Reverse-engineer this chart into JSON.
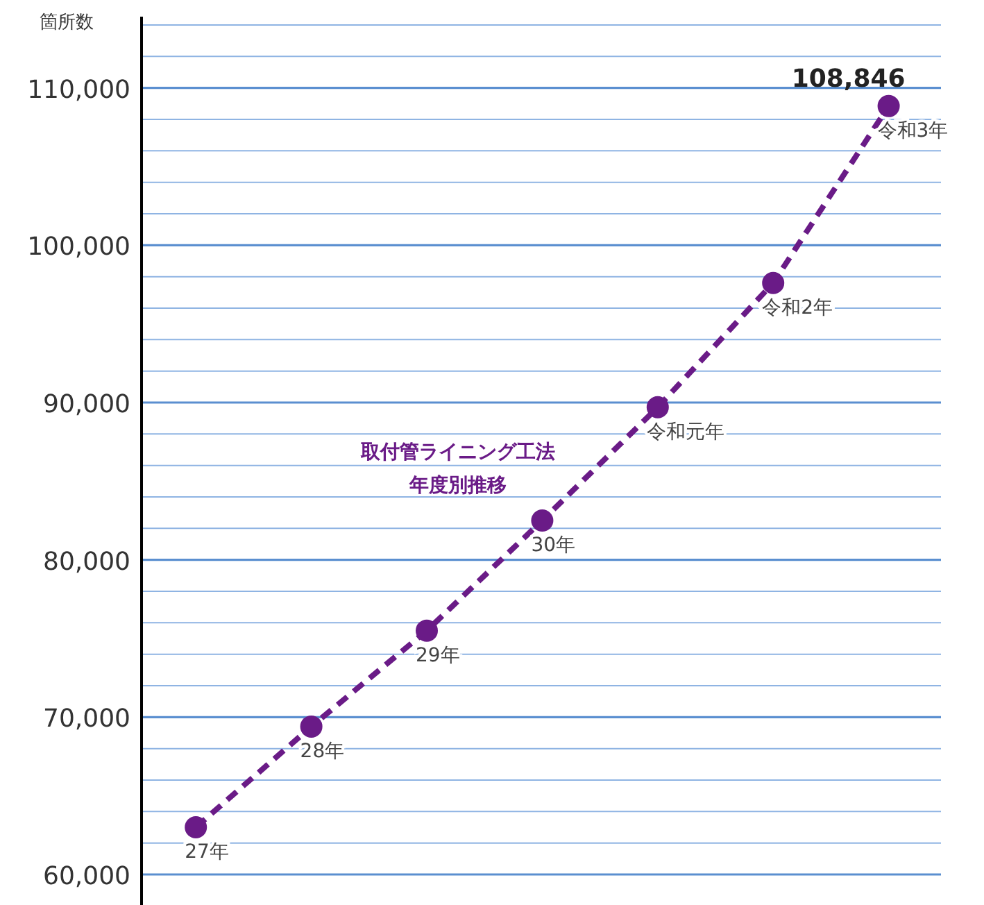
{
  "chart_data": {
    "type": "line",
    "title": "取付管ライニング工法",
    "subtitle": "年度別推移",
    "ylabel": "箇所数",
    "categories": [
      "27年",
      "28年",
      "29年",
      "30年",
      "令和元年",
      "令和2年",
      "令和3年"
    ],
    "series": [
      {
        "color": "#6a1b87",
        "values": [
          63000,
          69400,
          75500,
          82500,
          89700,
          97600,
          108846
        ],
        "value_labels": [
          null,
          null,
          null,
          null,
          null,
          null,
          "108,846"
        ]
      }
    ],
    "ylim": [
      60000,
      114000
    ],
    "yticks": [
      {
        "value": 60000,
        "label": "60,000"
      },
      {
        "value": 62000,
        "label": null
      },
      {
        "value": 64000,
        "label": null
      },
      {
        "value": 66000,
        "label": null
      },
      {
        "value": 68000,
        "label": null
      },
      {
        "value": 70000,
        "label": "70,000"
      },
      {
        "value": 72000,
        "label": null
      },
      {
        "value": 74000,
        "label": null
      },
      {
        "value": 76000,
        "label": null
      },
      {
        "value": 78000,
        "label": null
      },
      {
        "value": 80000,
        "label": "80,000"
      },
      {
        "value": 82000,
        "label": null
      },
      {
        "value": 84000,
        "label": null
      },
      {
        "value": 86000,
        "label": null
      },
      {
        "value": 88000,
        "label": null
      },
      {
        "value": 90000,
        "label": "90,000"
      },
      {
        "value": 92000,
        "label": null
      },
      {
        "value": 94000,
        "label": null
      },
      {
        "value": 96000,
        "label": null
      },
      {
        "value": 98000,
        "label": null
      },
      {
        "value": 100000,
        "label": "100,000"
      },
      {
        "value": 102000,
        "label": null
      },
      {
        "value": 104000,
        "label": null
      },
      {
        "value": 106000,
        "label": null
      },
      {
        "value": 108000,
        "label": null
      },
      {
        "value": 110000,
        "label": "110,000"
      },
      {
        "value": 112000,
        "label": null
      },
      {
        "value": 114000,
        "label": null
      }
    ],
    "grid": "y",
    "marker": "circle",
    "line_style": "dashed"
  }
}
